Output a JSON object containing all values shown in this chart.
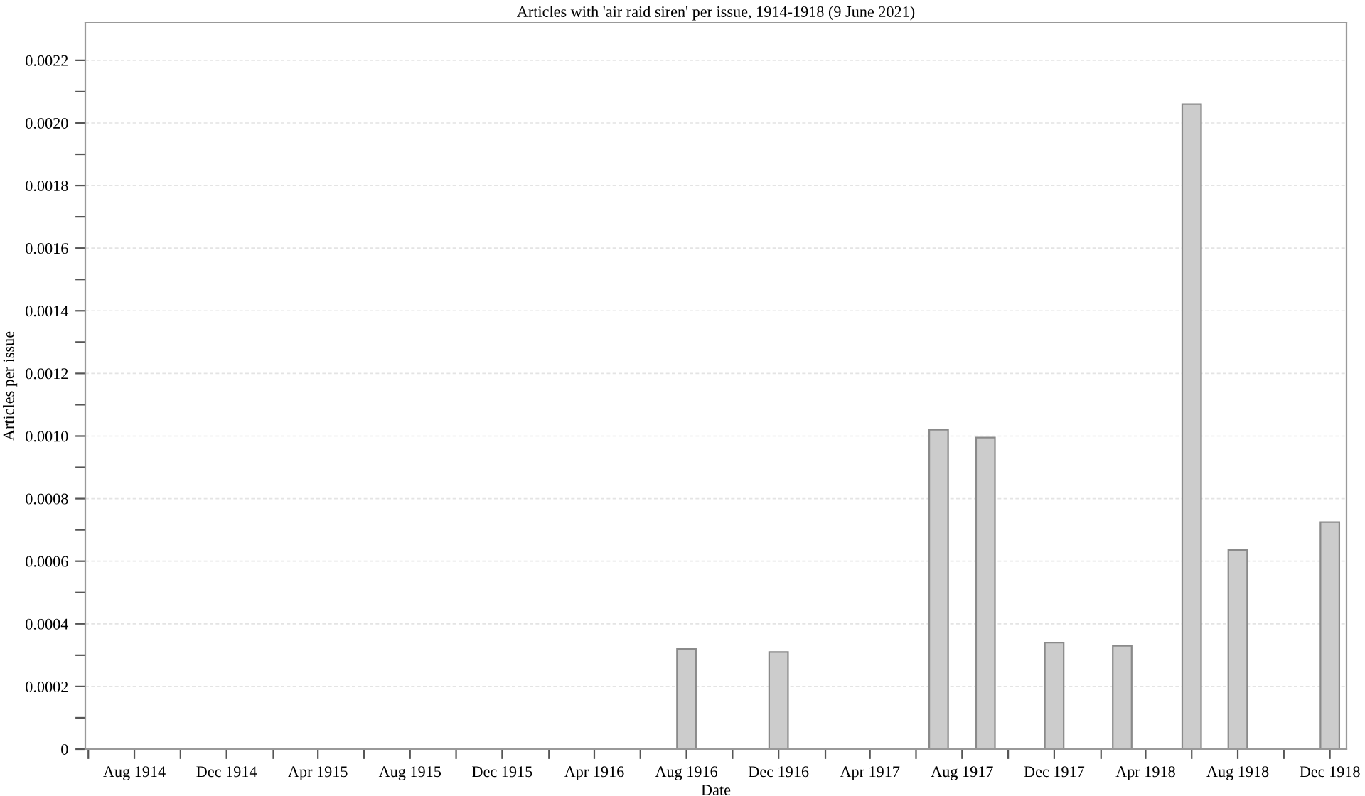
{
  "chart_data": {
    "type": "bar",
    "title": "Articles with 'air raid siren' per issue, 1914-1918 (9 June 2021)",
    "xlabel": "Date",
    "ylabel": "Articles per issue",
    "x": [
      "1916-08",
      "1916-12",
      "1917-07",
      "1917-09",
      "1917-12",
      "1918-03",
      "1918-06",
      "1918-08",
      "1918-12"
    ],
    "values": [
      0.00032,
      0.00031,
      0.00102,
      0.000995,
      0.00034,
      0.00033,
      0.00206,
      0.000636,
      0.000725
    ],
    "color": "#cccccc",
    "xlim": [
      "1914-05-28",
      "1918-12-23"
    ],
    "xticks": [
      {
        "value": "1914-06",
        "label": null
      },
      {
        "value": "1914-08",
        "label": "Aug 1914"
      },
      {
        "value": "1914-10",
        "label": null
      },
      {
        "value": "1914-12",
        "label": "Dec 1914"
      },
      {
        "value": "1915-02",
        "label": null
      },
      {
        "value": "1915-04",
        "label": "Apr 1915"
      },
      {
        "value": "1915-06",
        "label": null
      },
      {
        "value": "1915-08",
        "label": "Aug 1915"
      },
      {
        "value": "1915-10",
        "label": null
      },
      {
        "value": "1915-12",
        "label": "Dec 1915"
      },
      {
        "value": "1916-02",
        "label": null
      },
      {
        "value": "1916-04",
        "label": "Apr 1916"
      },
      {
        "value": "1916-06",
        "label": null
      },
      {
        "value": "1916-08",
        "label": "Aug 1916"
      },
      {
        "value": "1916-10",
        "label": null
      },
      {
        "value": "1916-12",
        "label": "Dec 1916"
      },
      {
        "value": "1917-02",
        "label": null
      },
      {
        "value": "1917-04",
        "label": "Apr 1917"
      },
      {
        "value": "1917-06",
        "label": null
      },
      {
        "value": "1917-08",
        "label": "Aug 1917"
      },
      {
        "value": "1917-10",
        "label": null
      },
      {
        "value": "1917-12",
        "label": "Dec 1917"
      },
      {
        "value": "1918-02",
        "label": null
      },
      {
        "value": "1918-04",
        "label": "Apr 1918"
      },
      {
        "value": "1918-06",
        "label": null
      },
      {
        "value": "1918-08",
        "label": "Aug 1918"
      },
      {
        "value": "1918-10",
        "label": null
      },
      {
        "value": "1918-12",
        "label": "Dec 1918"
      }
    ],
    "ylim": [
      0,
      0.00232
    ],
    "yticks": [
      0,
      {
        "value": 0.0001,
        "label": null
      },
      0.0002,
      {
        "value": 0.0003,
        "label": null
      },
      0.0004,
      {
        "value": 0.0005,
        "label": null
      },
      0.0006,
      {
        "value": 0.0007,
        "label": null
      },
      0.0008,
      {
        "value": 0.0009,
        "label": null
      },
      {
        "value": 0.001,
        "label": "0.0010"
      },
      {
        "value": 0.0011,
        "label": null
      },
      0.0012,
      {
        "value": 0.0013,
        "label": null
      },
      0.0014,
      {
        "value": 0.0015,
        "label": null
      },
      0.0016,
      {
        "value": 0.0017,
        "label": null
      },
      0.0018,
      {
        "value": 0.0019,
        "label": null
      },
      {
        "value": 0.002,
        "label": "0.0020"
      },
      {
        "value": 0.0021,
        "label": null
      },
      0.0022
    ],
    "grid": "y"
  }
}
